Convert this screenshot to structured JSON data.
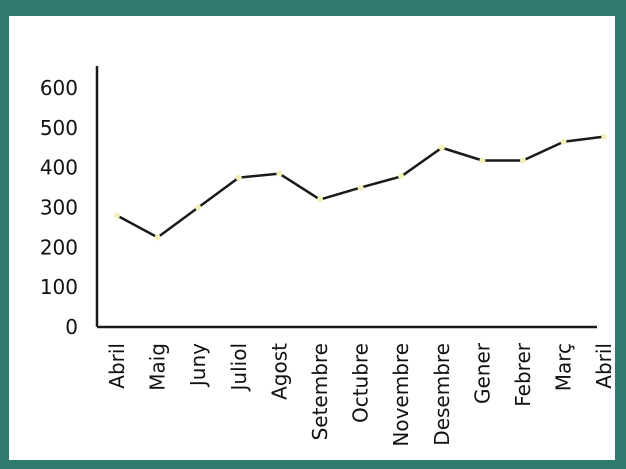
{
  "colors": {
    "frame": "#2f7a6c",
    "panel": "#ffffff",
    "line": "#1a1a1a",
    "axis": "#1a1a1a",
    "marker": "#f3f1b8"
  },
  "chart_data": {
    "type": "line",
    "title": "",
    "xlabel": "",
    "ylabel": "",
    "categories": [
      "Abril",
      "Maig",
      "Juny",
      "Juliol",
      "Agost",
      "Setembre",
      "Octubre",
      "Novembre",
      "Desembre",
      "Gener",
      "Febrer",
      "Març",
      "Abril"
    ],
    "series": [
      {
        "values": [
          280,
          225,
          300,
          375,
          385,
          320,
          350,
          378,
          450,
          418,
          418,
          465,
          478
        ]
      }
    ],
    "ylim": [
      0,
      650
    ],
    "yticks": [
      0,
      100,
      200,
      300,
      400,
      500,
      600
    ],
    "grid": false,
    "legend": "none"
  }
}
